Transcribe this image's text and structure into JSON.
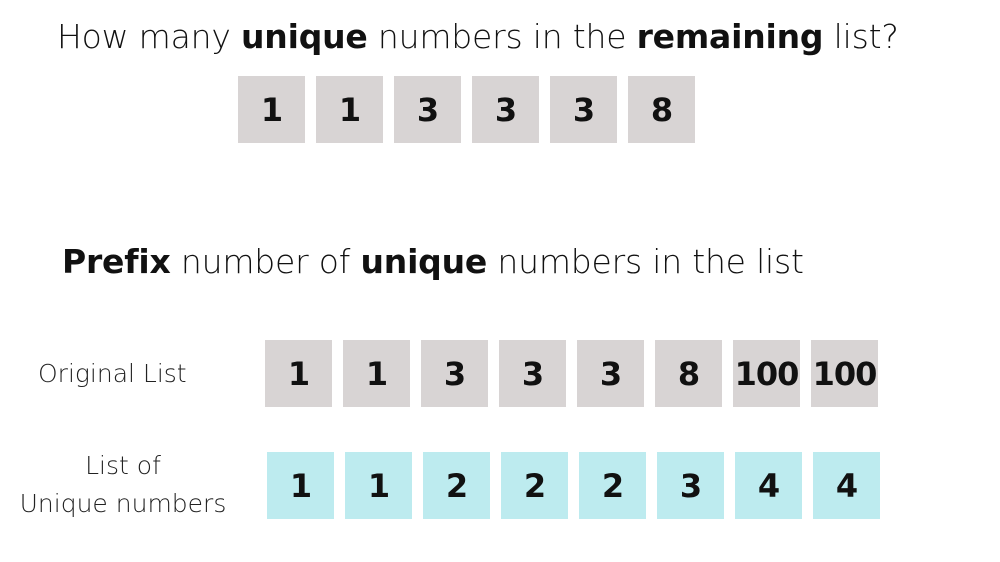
{
  "question": {
    "part1": "How many ",
    "bold1": "unique",
    "part2": " numbers in the ",
    "bold2": "remaining",
    "part3": " list?"
  },
  "remaining_list": [
    "1",
    "1",
    "3",
    "3",
    "3",
    "8"
  ],
  "prefix_heading": {
    "bold1": "Prefix",
    "part1": " number of ",
    "bold2": "unique",
    "part2": " numbers in the list"
  },
  "original_list": {
    "label": "Original List",
    "values": [
      "1",
      "1",
      "3",
      "3",
      "3",
      "8",
      "100",
      "100"
    ]
  },
  "unique_list": {
    "label_line1": "List of",
    "label_line2": "Unique numbers",
    "values": [
      "1",
      "1",
      "2",
      "2",
      "2",
      "3",
      "4",
      "4"
    ]
  },
  "colors": {
    "gray_cell": "#d8d4d4",
    "cyan_cell": "#bdebef"
  }
}
